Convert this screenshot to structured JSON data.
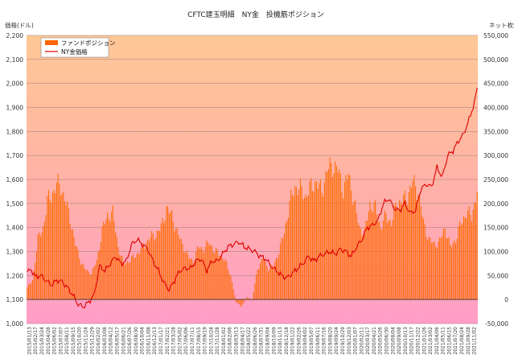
{
  "chart_data": {
    "type": "bar+line",
    "title": "CFTC建玉明細　NY金　投機筋ポジション",
    "ylabel_left": "価格(ドル)",
    "ylabel_right": "ネット枚数",
    "ylim_left": [
      1000,
      2200
    ],
    "ylim_right": [
      -50000,
      550000
    ],
    "yticks_left": [
      "1,000",
      "1,100",
      "1,200",
      "1,300",
      "1,400",
      "1,500",
      "1,600",
      "1,700",
      "1,800",
      "1,900",
      "2,000",
      "2,100",
      "2,200"
    ],
    "yticks_right": [
      "-50,000",
      "0",
      "50,000",
      "100,000",
      "150,000",
      "200,000",
      "250,000",
      "300,000",
      "350,000",
      "400,000",
      "450,000",
      "500,000",
      "550,000"
    ],
    "legend": [
      "ファンドポジション",
      "NY金価格"
    ],
    "colors": {
      "bars": "#ff6600",
      "line": "#dd0000",
      "bg_top": "#ffc090",
      "bg_bottom": "#ff9ec8"
    },
    "xticks": [
      "2015/01/13",
      "2015/02/17",
      "2015/03/24",
      "2015/04/28",
      "2015/06/02",
      "2015/07/07",
      "2015/08/11",
      "2015/09/15",
      "2015/10/20",
      "2015/11/24",
      "2015/12/29",
      "2016/02/02",
      "2016/03/08",
      "2016/04/12",
      "2016/05/17",
      "2016/06/21",
      "2016/07/26",
      "2016/08/30",
      "2016/10/04",
      "2016/11/08",
      "2016/12/13",
      "2017/01/17",
      "2017/02/21",
      "2017/03/28",
      "2017/05/02",
      "2017/06/06",
      "2017/07/11",
      "2017/08/15",
      "2017/09/19",
      "2017/10/24",
      "2017/11/28",
      "2018/01/02",
      "2018/02/06",
      "2018/03/13",
      "2018/04/17",
      "2018/05/22",
      "2018/06/26",
      "2018/07/31",
      "2018/09/04",
      "2018/10/09",
      "2018/11/13",
      "2018/12/18",
      "2019/01/22",
      "2019/02/26",
      "2019/04/02",
      "2019/05/07",
      "2019/06/11",
      "2019/07/16",
      "2019/08/20",
      "2019/09/24",
      "2019/10/29",
      "2019/12/03",
      "2020/01/07",
      "2020/02/11",
      "2020/03/17",
      "2020/04/21",
      "2020/05/26",
      "2020/06/30",
      "2020/08/04",
      "2020/09/08",
      "2020/10/13",
      "2020/11/17",
      "2020/12/22",
      "2021/01/26",
      "2021/03/02",
      "2021/04/06",
      "2021/05/11",
      "2021/06/15",
      "2021/07/20",
      "2021/08/24",
      "2021/09/28",
      "2021/11/02"
    ],
    "position_anchors": [
      [
        0,
        25000
      ],
      [
        4,
        40000
      ],
      [
        8,
        125000
      ],
      [
        12,
        150000
      ],
      [
        15,
        205000
      ],
      [
        18,
        215000
      ],
      [
        22,
        240000
      ],
      [
        25,
        235000
      ],
      [
        28,
        210000
      ],
      [
        32,
        170000
      ],
      [
        36,
        115000
      ],
      [
        40,
        80000
      ],
      [
        44,
        60000
      ],
      [
        48,
        55000
      ],
      [
        52,
        80000
      ],
      [
        56,
        145000
      ],
      [
        60,
        175000
      ],
      [
        64,
        180000
      ],
      [
        68,
        110000
      ],
      [
        72,
        75000
      ],
      [
        76,
        80000
      ],
      [
        80,
        90000
      ],
      [
        84,
        100000
      ],
      [
        88,
        115000
      ],
      [
        92,
        130000
      ],
      [
        96,
        135000
      ],
      [
        100,
        150000
      ],
      [
        104,
        190000
      ],
      [
        108,
        175000
      ],
      [
        112,
        140000
      ],
      [
        116,
        115000
      ],
      [
        120,
        90000
      ],
      [
        124,
        80000
      ],
      [
        128,
        110000
      ],
      [
        132,
        105000
      ],
      [
        136,
        120000
      ],
      [
        140,
        100000
      ],
      [
        144,
        95000
      ],
      [
        148,
        80000
      ],
      [
        152,
        50000
      ],
      [
        156,
        -5000
      ],
      [
        160,
        -15000
      ],
      [
        164,
        5000
      ],
      [
        168,
        0
      ],
      [
        172,
        65000
      ],
      [
        176,
        85000
      ],
      [
        180,
        65000
      ],
      [
        184,
        70000
      ],
      [
        188,
        100000
      ],
      [
        192,
        140000
      ],
      [
        196,
        200000
      ],
      [
        200,
        235000
      ],
      [
        204,
        230000
      ],
      [
        208,
        215000
      ],
      [
        212,
        235000
      ],
      [
        216,
        245000
      ],
      [
        220,
        225000
      ],
      [
        224,
        270000
      ],
      [
        228,
        280000
      ],
      [
        232,
        270000
      ],
      [
        236,
        230000
      ],
      [
        240,
        260000
      ],
      [
        244,
        205000
      ],
      [
        248,
        150000
      ],
      [
        252,
        140000
      ],
      [
        256,
        200000
      ],
      [
        260,
        190000
      ],
      [
        264,
        150000
      ],
      [
        268,
        175000
      ],
      [
        272,
        160000
      ],
      [
        276,
        200000
      ],
      [
        280,
        205000
      ],
      [
        284,
        215000
      ],
      [
        288,
        245000
      ],
      [
        292,
        225000
      ],
      [
        296,
        160000
      ],
      [
        300,
        125000
      ],
      [
        304,
        115000
      ],
      [
        308,
        120000
      ],
      [
        312,
        150000
      ],
      [
        316,
        110000
      ],
      [
        320,
        125000
      ],
      [
        324,
        160000
      ],
      [
        328,
        180000
      ],
      [
        332,
        175000
      ],
      [
        336,
        225000
      ]
    ],
    "price_anchors": [
      [
        0,
        1215
      ],
      [
        3,
        1225
      ],
      [
        6,
        1195
      ],
      [
        10,
        1200
      ],
      [
        14,
        1180
      ],
      [
        18,
        1160
      ],
      [
        22,
        1180
      ],
      [
        26,
        1175
      ],
      [
        30,
        1150
      ],
      [
        34,
        1120
      ],
      [
        38,
        1080
      ],
      [
        42,
        1070
      ],
      [
        46,
        1090
      ],
      [
        50,
        1120
      ],
      [
        54,
        1240
      ],
      [
        58,
        1220
      ],
      [
        62,
        1250
      ],
      [
        66,
        1280
      ],
      [
        70,
        1250
      ],
      [
        74,
        1260
      ],
      [
        78,
        1330
      ],
      [
        82,
        1350
      ],
      [
        86,
        1330
      ],
      [
        90,
        1310
      ],
      [
        94,
        1260
      ],
      [
        98,
        1220
      ],
      [
        102,
        1170
      ],
      [
        106,
        1140
      ],
      [
        110,
        1180
      ],
      [
        114,
        1220
      ],
      [
        118,
        1230
      ],
      [
        122,
        1230
      ],
      [
        126,
        1260
      ],
      [
        130,
        1270
      ],
      [
        134,
        1220
      ],
      [
        138,
        1260
      ],
      [
        142,
        1260
      ],
      [
        146,
        1290
      ],
      [
        150,
        1320
      ],
      [
        154,
        1330
      ],
      [
        158,
        1340
      ],
      [
        162,
        1320
      ],
      [
        166,
        1310
      ],
      [
        170,
        1300
      ],
      [
        174,
        1280
      ],
      [
        178,
        1270
      ],
      [
        182,
        1240
      ],
      [
        186,
        1220
      ],
      [
        190,
        1200
      ],
      [
        194,
        1190
      ],
      [
        198,
        1210
      ],
      [
        202,
        1230
      ],
      [
        206,
        1250
      ],
      [
        210,
        1280
      ],
      [
        214,
        1260
      ],
      [
        218,
        1280
      ],
      [
        222,
        1290
      ],
      [
        226,
        1300
      ],
      [
        230,
        1290
      ],
      [
        234,
        1310
      ],
      [
        238,
        1300
      ],
      [
        242,
        1280
      ],
      [
        246,
        1320
      ],
      [
        250,
        1350
      ],
      [
        254,
        1400
      ],
      [
        258,
        1410
      ],
      [
        262,
        1430
      ],
      [
        266,
        1500
      ],
      [
        270,
        1520
      ],
      [
        274,
        1480
      ],
      [
        278,
        1470
      ],
      [
        282,
        1500
      ],
      [
        286,
        1460
      ],
      [
        290,
        1470
      ],
      [
        294,
        1560
      ],
      [
        298,
        1580
      ],
      [
        302,
        1570
      ],
      [
        306,
        1650
      ],
      [
        310,
        1610
      ],
      [
        314,
        1700
      ],
      [
        318,
        1720
      ],
      [
        322,
        1760
      ],
      [
        326,
        1790
      ],
      [
        330,
        1850
      ],
      [
        334,
        1920
      ],
      [
        336,
        1980
      ]
    ]
  }
}
